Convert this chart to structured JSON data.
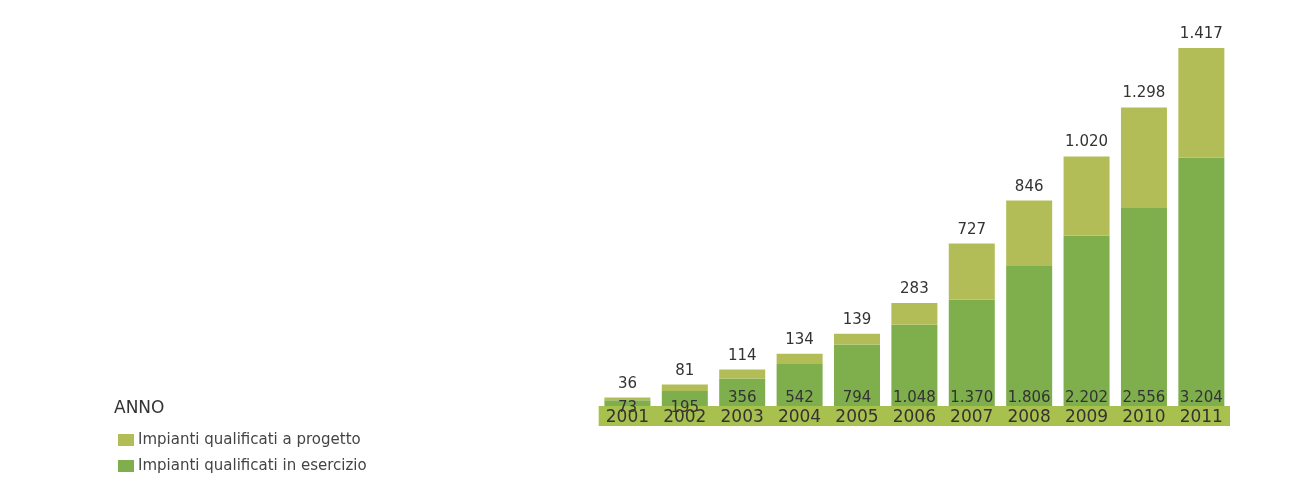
{
  "chart_data": {
    "type": "bar",
    "stacked": true,
    "annotations": [
      "ANNO"
    ],
    "legend": "bottom left",
    "categories": [
      "2001",
      "2002",
      "2003",
      "2004",
      "2005",
      "2006",
      "2007",
      "2008",
      "2009",
      "2010",
      "2011"
    ],
    "series": [
      {
        "name": "Impianti qualificati in esercizio",
        "color": "#7fae4c",
        "values": [
          73,
          195,
          356,
          542,
          794,
          1048,
          1370,
          1806,
          2202,
          2556,
          3204
        ],
        "value_labels": [
          "73",
          "195",
          "356",
          "542",
          "794",
          "1.048",
          "1.370",
          "1.806",
          "2.202",
          "2.556",
          "3.204"
        ]
      },
      {
        "name": "Impianti qualificati a progetto",
        "color": "#b3bd58",
        "values": [
          36,
          81,
          114,
          134,
          139,
          283,
          727,
          846,
          1020,
          1298,
          1417
        ],
        "value_labels": [
          "36",
          "81",
          "114",
          "134",
          "139",
          "283",
          "727",
          "846",
          "1.020",
          "1.298",
          "1.417"
        ]
      }
    ]
  }
}
